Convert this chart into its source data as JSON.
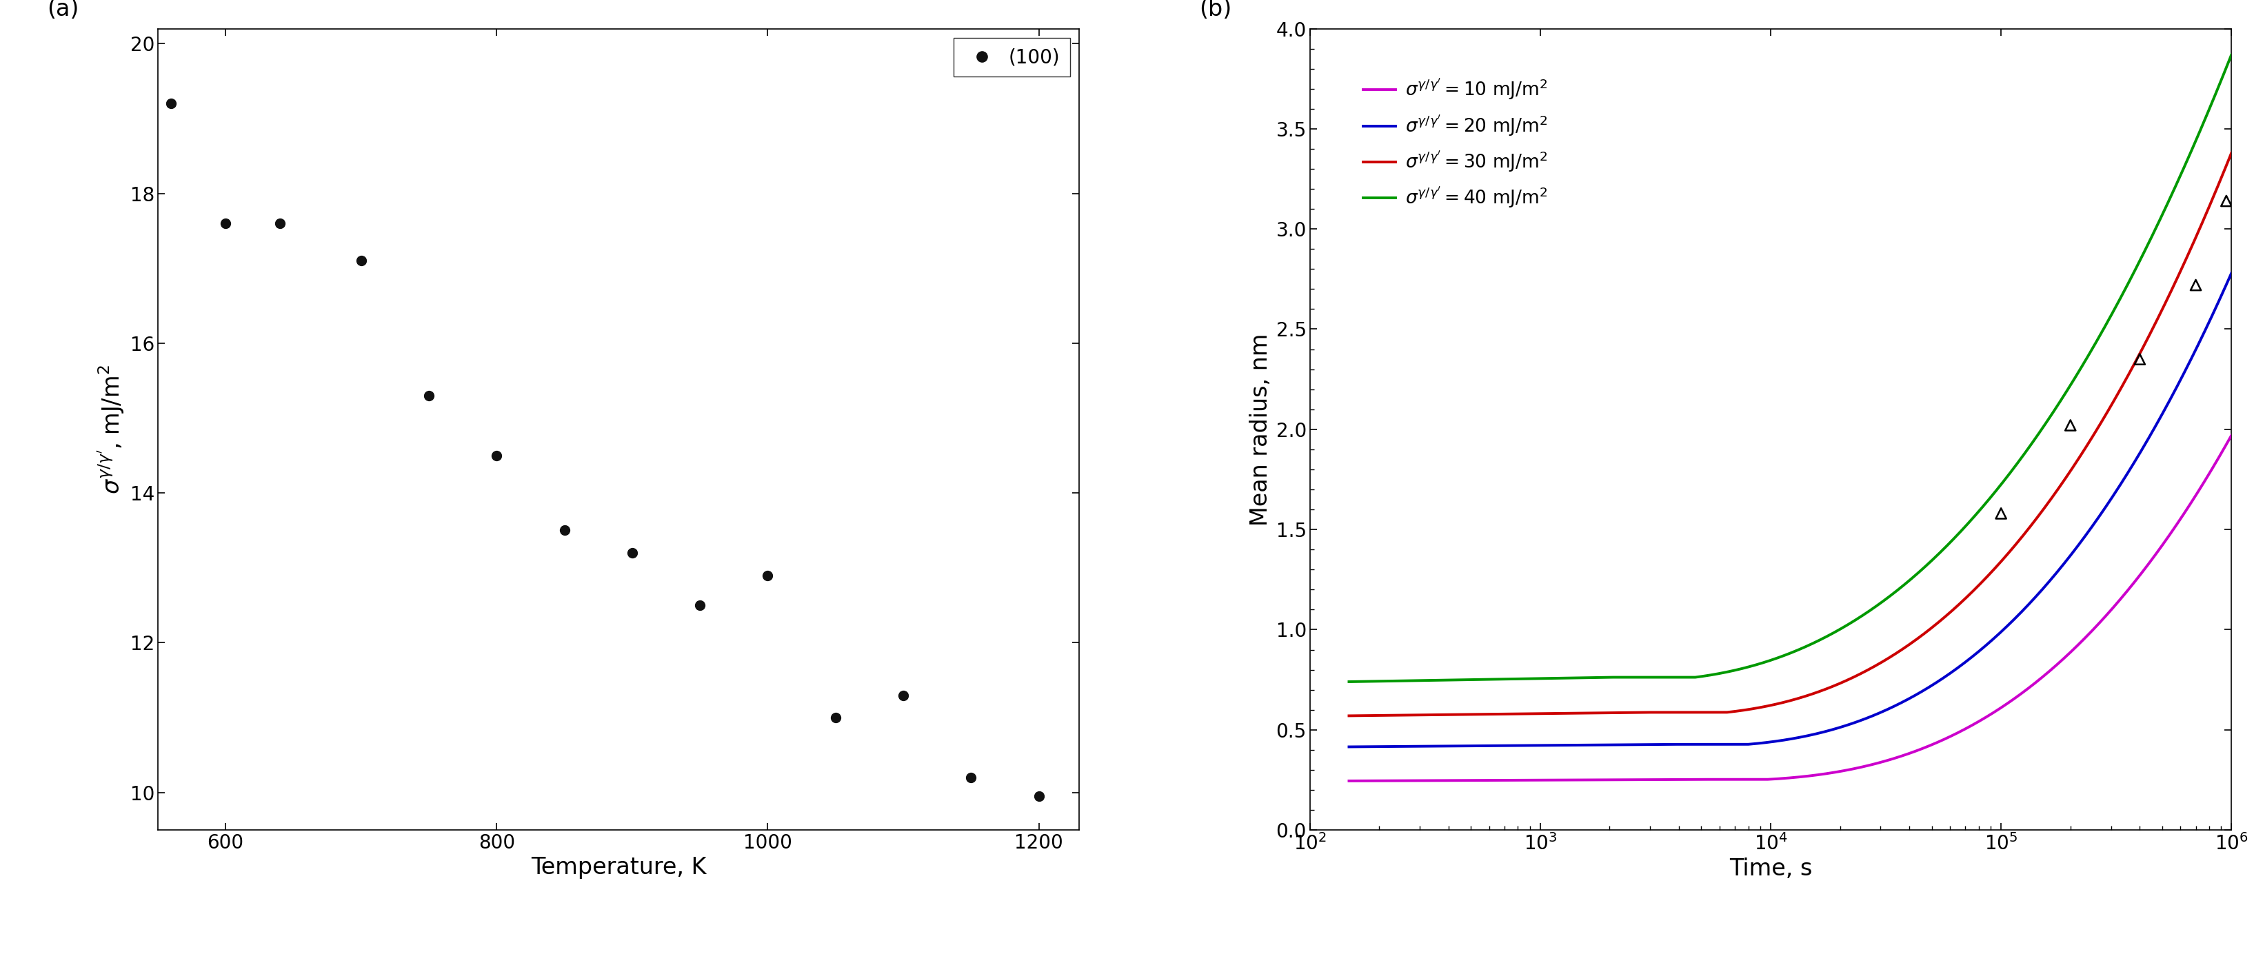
{
  "panel_a": {
    "label": "(a)",
    "temp_x": [
      560,
      600,
      640,
      700,
      750,
      800,
      850,
      900,
      950,
      1000,
      1050,
      1100,
      1150,
      1200
    ],
    "sigma_y": [
      19.2,
      17.6,
      17.6,
      17.1,
      15.3,
      14.5,
      13.5,
      13.2,
      12.5,
      12.9,
      11.0,
      11.3,
      10.2,
      9.95
    ],
    "xlabel": "Temperature, K",
    "ylabel": "$\\sigma^{\\gamma/\\gamma'}$, mJ/m$^2$",
    "xlim": [
      550,
      1230
    ],
    "ylim": [
      9.5,
      20.2
    ],
    "yticks": [
      10,
      12,
      14,
      16,
      18,
      20
    ],
    "xticks": [
      600,
      800,
      1000,
      1200
    ],
    "legend_label": "(100)",
    "dot_color": "#111111",
    "dot_size": 100
  },
  "panel_b": {
    "label": "(b)",
    "xlabel": "Time, s",
    "ylabel": "Mean radius, nm",
    "xlim_log": [
      2,
      6
    ],
    "ylim": [
      0.0,
      4.0
    ],
    "yticks": [
      0.0,
      0.5,
      1.0,
      1.5,
      2.0,
      2.5,
      3.0,
      3.5,
      4.0
    ],
    "lines": [
      {
        "sigma": 10,
        "color": "#cc00cc",
        "r0": 0.245,
        "r_end": 1.97,
        "flat_until": 3.65,
        "exp": 2.8
      },
      {
        "sigma": 20,
        "color": "#0000cc",
        "r0": 0.415,
        "r_end": 2.78,
        "flat_until": 3.55,
        "exp": 2.7
      },
      {
        "sigma": 30,
        "color": "#cc0000",
        "r0": 0.57,
        "r_end": 3.38,
        "flat_until": 3.45,
        "exp": 2.6
      },
      {
        "sigma": 40,
        "color": "#009900",
        "r0": 0.74,
        "r_end": 3.87,
        "flat_until": 3.3,
        "exp": 2.5
      }
    ],
    "legend_labels": [
      "$\\sigma^{\\gamma/\\gamma'} = 10$ mJ/m$^2$",
      "$\\sigma^{\\gamma/\\gamma'} = 20$ mJ/m$^2$",
      "$\\sigma^{\\gamma/\\gamma'} = 30$ mJ/m$^2$",
      "$\\sigma^{\\gamma/\\gamma'} = 40$ mJ/m$^2$"
    ],
    "triangle_points": [
      [
        100000,
        1.58
      ],
      [
        200000,
        2.02
      ],
      [
        400000,
        2.35
      ],
      [
        700000,
        2.72
      ],
      [
        950000,
        3.14
      ]
    ]
  }
}
